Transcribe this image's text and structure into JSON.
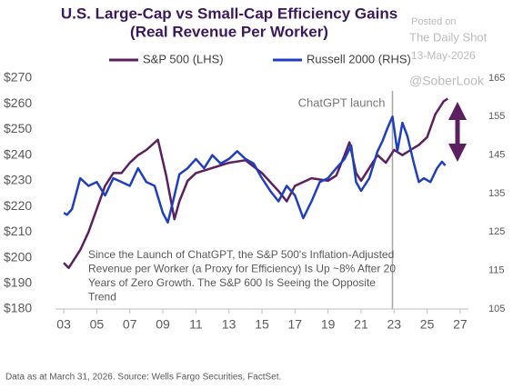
{
  "chart_data": {
    "type": "line",
    "title": [
      "U.S. Large-Cap vs Small-Cap Efficiency Gains",
      "(Real Revenue Per Worker)"
    ],
    "watermark": [
      "Posted on",
      "The Daily Shot",
      "13-May-2026",
      "@SoberLook"
    ],
    "legend": "top",
    "xlim": [
      2002.5,
      2027.5
    ],
    "xticks": [
      {
        "value": 2003,
        "label": "03"
      },
      {
        "value": 2005,
        "label": "05"
      },
      {
        "value": 2007,
        "label": "07"
      },
      {
        "value": 2009,
        "label": "09"
      },
      {
        "value": 2011,
        "label": "11"
      },
      {
        "value": 2013,
        "label": "13"
      },
      {
        "value": 2015,
        "label": "15"
      },
      {
        "value": 2017,
        "label": "17"
      },
      {
        "value": 2019,
        "label": "19"
      },
      {
        "value": 2021,
        "label": "21"
      },
      {
        "value": 2023,
        "label": "23"
      },
      {
        "value": 2025,
        "label": "25"
      },
      {
        "value": 2027,
        "label": "27"
      }
    ],
    "ylim": [
      180,
      270
    ],
    "yticks": [
      {
        "value": 180,
        "label": "$180"
      },
      {
        "value": 190,
        "label": "$190"
      },
      {
        "value": 200,
        "label": "$200"
      },
      {
        "value": 210,
        "label": "$210"
      },
      {
        "value": 220,
        "label": "$220"
      },
      {
        "value": 230,
        "label": "$230"
      },
      {
        "value": 240,
        "label": "$240"
      },
      {
        "value": 250,
        "label": "$250"
      },
      {
        "value": 260,
        "label": "$260"
      },
      {
        "value": 270,
        "label": "$270"
      }
    ],
    "y2lim": [
      105,
      165
    ],
    "y2ticks": [
      105,
      115,
      125,
      135,
      145,
      155,
      165
    ],
    "series": [
      {
        "name": "S&P 500 (LHS)",
        "color": "#5c1f5f",
        "x": [
          2003,
          2003.3,
          2004,
          2004.5,
          2005,
          2005.5,
          2006,
          2006.5,
          2007,
          2007.5,
          2008,
          2008.7,
          2009.2,
          2009.7,
          2010,
          2010.5,
          2011,
          2012,
          2013,
          2014,
          2015,
          2016,
          2016.5,
          2017,
          2018,
          2019,
          2019.5,
          2020,
          2020.3,
          2020.7,
          2021,
          2021.5,
          2022,
          2022.5,
          2023,
          2023.5,
          2024,
          2024.5,
          2025,
          2025.5,
          2026,
          2026.25
        ],
        "values": [
          198,
          196,
          203,
          210,
          219,
          228,
          233,
          233,
          237,
          240,
          242,
          246,
          232,
          215,
          222,
          230,
          233,
          235,
          237,
          238,
          233,
          226,
          222,
          228,
          231,
          230,
          232,
          240,
          245,
          233,
          230,
          235,
          240,
          237,
          242,
          240,
          242,
          244,
          247,
          256,
          261,
          262
        ]
      },
      {
        "name": "Russell 2000 (RHS)",
        "color": "#1f3fbf",
        "axis": "y2",
        "x": [
          2003,
          2003.2,
          2003.5,
          2004,
          2004.5,
          2005,
          2005.5,
          2006,
          2006.5,
          2007,
          2007.5,
          2008,
          2008.5,
          2009,
          2009.3,
          2009.7,
          2010,
          2010.5,
          2011,
          2011.5,
          2012,
          2012.5,
          2013,
          2013.5,
          2014,
          2014.5,
          2015,
          2015.5,
          2016,
          2016.5,
          2017,
          2017.5,
          2018,
          2018.5,
          2019,
          2019.5,
          2020,
          2020.4,
          2020.7,
          2021,
          2021.5,
          2022,
          2022.3,
          2022.6,
          2022.9,
          2023.2,
          2023.5,
          2023.8,
          2024.2,
          2024.5,
          2024.8,
          2025.2,
          2025.6,
          2025.9,
          2026.1
        ],
        "values": [
          130,
          129.5,
          131,
          139,
          137,
          138,
          134.5,
          139,
          138,
          137,
          141.6,
          138,
          137,
          130,
          127.5,
          134.5,
          140,
          141.6,
          144,
          141.6,
          145,
          142.8,
          144,
          146,
          144,
          142.8,
          139,
          135.7,
          133,
          137,
          134.5,
          128.6,
          133,
          138,
          139,
          141.6,
          144,
          147.5,
          138,
          135.7,
          139,
          146,
          148.7,
          152,
          155,
          146,
          153.4,
          150,
          142.8,
          138,
          139,
          138,
          141.6,
          143.3,
          142.3
        ]
      }
    ],
    "annotations": [
      {
        "text": "ChatGPT launch",
        "x": 2022.9
      }
    ],
    "note": [
      "Since the Launch of ChatGPT, the S&P 500's Inflation-Adjusted",
      "Revenue per Worker (a Proxy for Efficiency) Is Up ~8% After 20",
      "Years of Zero Growth. The S&P 600 Is Seeing the Opposite",
      "Trend"
    ],
    "source": "Data as at March 31, 2026. Source: Wells Fargo Securities, FactSet."
  }
}
